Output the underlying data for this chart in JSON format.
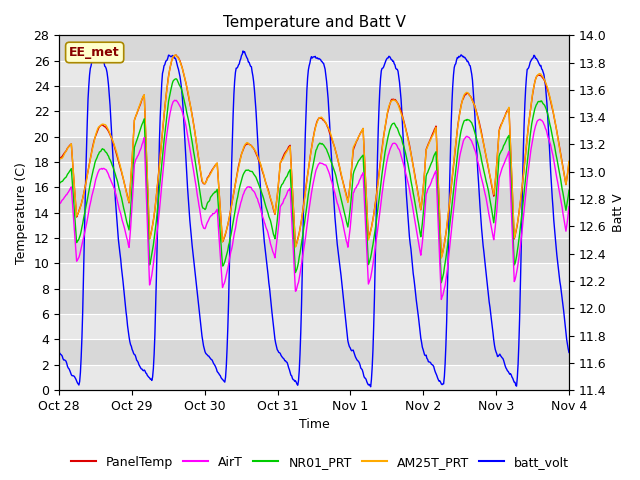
{
  "title": "Temperature and Batt V",
  "xlabel": "Time",
  "ylabel_left": "Temperature (C)",
  "ylabel_right": "Batt V",
  "ylim_left": [
    0,
    28
  ],
  "ylim_right": [
    11.4,
    14.0
  ],
  "xtick_labels": [
    "Oct 28",
    "Oct 29",
    "Oct 30",
    "Oct 31",
    "Nov 1",
    "Nov 2",
    "Nov 3",
    "Nov 4"
  ],
  "annotation": "EE_met",
  "colors": {
    "PanelTemp": "#dd0000",
    "AirT": "#ff00ff",
    "NR01_PRT": "#00cc00",
    "AM25T_PRT": "#ffaa00",
    "batt_volt": "#0000ff"
  },
  "bg_color": "#d8d8d8",
  "line_width": 1.0,
  "title_fontsize": 11,
  "axis_fontsize": 9,
  "tick_fontsize": 9,
  "legend_fontsize": 9
}
